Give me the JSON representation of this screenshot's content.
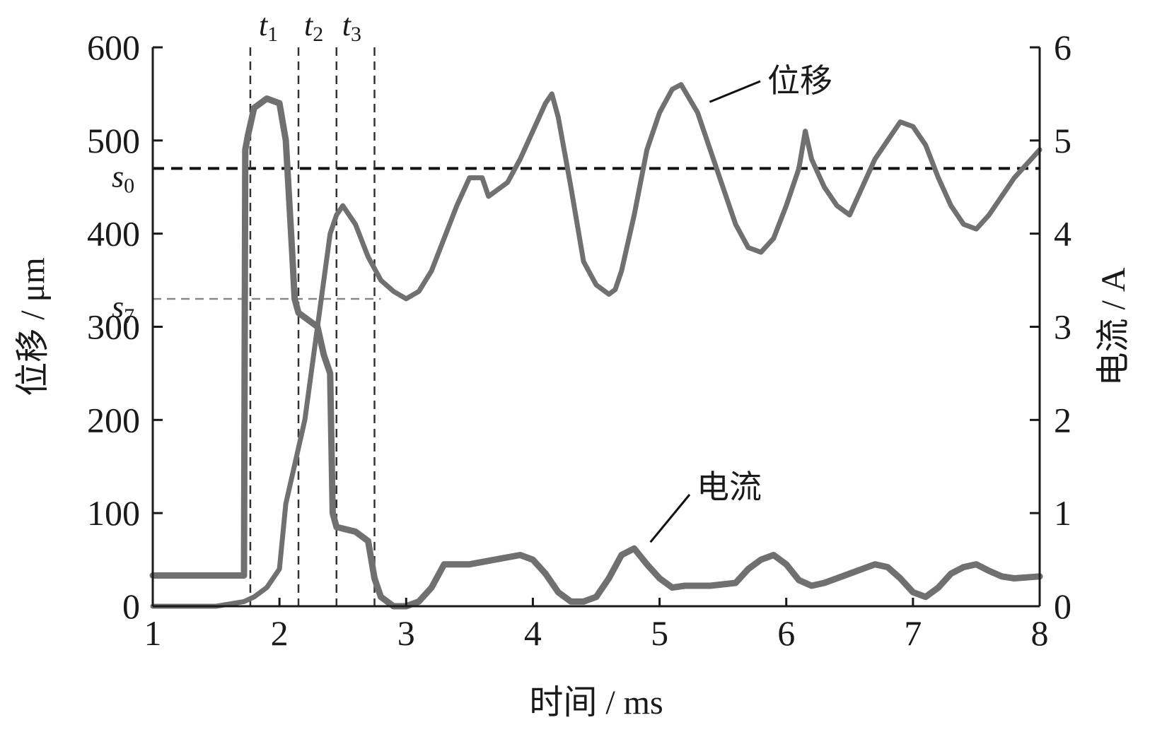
{
  "chart_data": {
    "type": "line",
    "xlabel": "时间 / ms",
    "ylabel_left": "位移 / μm",
    "ylabel_right": "电流 / A",
    "xlim": [
      1,
      8
    ],
    "ylim_left": [
      0,
      600
    ],
    "ylim_right": [
      0,
      6
    ],
    "x_ticks": [
      1,
      2,
      3,
      4,
      5,
      6,
      7,
      8
    ],
    "y_left_ticks": [
      0,
      100,
      200,
      300,
      400,
      500,
      600
    ],
    "y_right_ticks": [
      0,
      1,
      2,
      3,
      4,
      5,
      6
    ],
    "grid": false,
    "colors": {
      "line": "#707070",
      "axis": "#1a1a1a",
      "ref": "#222222"
    },
    "reference_lines": [
      {
        "label": "s",
        "sub": "0",
        "y": 470,
        "style": "dashed-dark"
      },
      {
        "label": "s",
        "sub": "7",
        "y": 330,
        "style": "dashed-light"
      }
    ],
    "time_markers": [
      {
        "label": "t",
        "sub": "1",
        "x": 1.77
      },
      {
        "label": "t",
        "sub": "2",
        "x": 2.15
      },
      {
        "label": "t",
        "sub": "3",
        "x": 2.45
      },
      {
        "label": "",
        "sub": "",
        "x": 2.75
      }
    ],
    "annotations": [
      {
        "text": "位移",
        "series": "displacement",
        "at": [
          5.2,
          530
        ]
      },
      {
        "text": "电流",
        "series": "current",
        "at": [
          4.9,
          0.65
        ]
      }
    ],
    "series": [
      {
        "name": "位移",
        "axis": "left",
        "x": [
          1.0,
          1.5,
          1.72,
          1.8,
          1.9,
          2.0,
          2.05,
          2.1,
          2.2,
          2.3,
          2.4,
          2.45,
          2.5,
          2.6,
          2.7,
          2.8,
          2.9,
          3.0,
          3.1,
          3.2,
          3.3,
          3.4,
          3.5,
          3.6,
          3.65,
          3.7,
          3.8,
          3.9,
          4.0,
          4.1,
          4.15,
          4.2,
          4.3,
          4.4,
          4.5,
          4.6,
          4.65,
          4.7,
          4.8,
          4.9,
          5.0,
          5.1,
          5.17,
          5.3,
          5.4,
          5.5,
          5.6,
          5.7,
          5.8,
          5.9,
          6.0,
          6.1,
          6.15,
          6.2,
          6.3,
          6.4,
          6.5,
          6.6,
          6.7,
          6.8,
          6.9,
          7.0,
          7.1,
          7.2,
          7.3,
          7.4,
          7.5,
          7.6,
          7.7,
          7.8,
          7.9,
          8.0
        ],
        "y": [
          0,
          0,
          5,
          10,
          20,
          40,
          110,
          140,
          200,
          300,
          400,
          420,
          430,
          410,
          375,
          350,
          338,
          330,
          338,
          360,
          395,
          430,
          460,
          460,
          440,
          445,
          455,
          480,
          510,
          540,
          550,
          525,
          450,
          370,
          345,
          335,
          340,
          360,
          420,
          490,
          530,
          555,
          560,
          530,
          490,
          450,
          410,
          385,
          380,
          395,
          430,
          470,
          510,
          480,
          450,
          430,
          420,
          450,
          480,
          500,
          520,
          515,
          495,
          460,
          430,
          410,
          405,
          420,
          440,
          460,
          475,
          490
        ]
      },
      {
        "name": "电流",
        "axis": "right",
        "x": [
          1.0,
          1.72,
          1.73,
          1.75,
          1.8,
          1.9,
          2.0,
          2.05,
          2.1,
          2.12,
          2.15,
          2.2,
          2.3,
          2.35,
          2.4,
          2.42,
          2.45,
          2.6,
          2.7,
          2.75,
          2.8,
          2.9,
          3.0,
          3.1,
          3.2,
          3.3,
          3.5,
          3.7,
          3.9,
          4.0,
          4.1,
          4.2,
          4.3,
          4.4,
          4.5,
          4.6,
          4.7,
          4.8,
          4.9,
          5.0,
          5.1,
          5.2,
          5.4,
          5.6,
          5.7,
          5.8,
          5.9,
          6.0,
          6.1,
          6.2,
          6.3,
          6.5,
          6.7,
          6.8,
          6.9,
          7.0,
          7.1,
          7.2,
          7.3,
          7.4,
          7.5,
          7.6,
          7.7,
          7.8,
          8.0
        ],
        "y": [
          0.33,
          0.33,
          4.9,
          5.05,
          5.35,
          5.45,
          5.4,
          5.0,
          3.8,
          3.3,
          3.15,
          3.1,
          3.0,
          2.7,
          2.5,
          1.0,
          0.85,
          0.8,
          0.7,
          0.3,
          0.1,
          0.0,
          0.0,
          0.05,
          0.2,
          0.45,
          0.45,
          0.5,
          0.55,
          0.5,
          0.35,
          0.15,
          0.05,
          0.05,
          0.1,
          0.3,
          0.55,
          0.62,
          0.45,
          0.3,
          0.2,
          0.22,
          0.22,
          0.25,
          0.4,
          0.5,
          0.55,
          0.45,
          0.28,
          0.22,
          0.25,
          0.35,
          0.45,
          0.42,
          0.3,
          0.15,
          0.1,
          0.2,
          0.35,
          0.42,
          0.45,
          0.38,
          0.32,
          0.3,
          0.32
        ]
      }
    ]
  }
}
